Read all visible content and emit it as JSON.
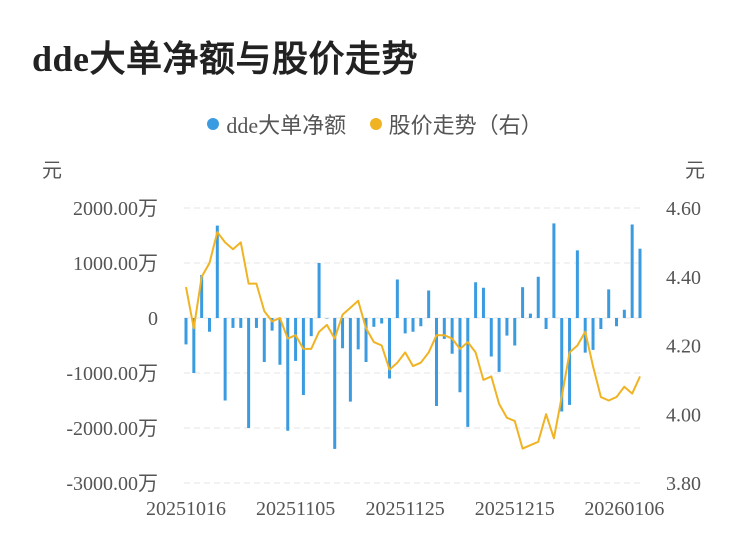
{
  "chart_data": {
    "type": "bar+line",
    "title": "dde大单净额与股价走势",
    "legend": [
      "dde大单净额",
      "股价走势（右）"
    ],
    "left_unit": "元",
    "right_unit": "元",
    "left_ticks": [
      "2000.00万",
      "1000.00万",
      "0",
      "-1000.00万",
      "-2000.00万",
      "-3000.00万"
    ],
    "right_ticks": [
      "4.60",
      "4.40",
      "4.20",
      "4.00",
      "3.80"
    ],
    "y_left_lim": [
      -3000,
      2000
    ],
    "y_right_lim": [
      3.8,
      4.6
    ],
    "x_labels": [
      "20251016",
      "20251105",
      "20251125",
      "20251215",
      "20260106"
    ],
    "x_label_indices": [
      0,
      14,
      28,
      42,
      56
    ],
    "colors": {
      "bar": "#3a9be0",
      "line": "#f0b323",
      "grid": "#e6e6e6"
    },
    "series": [
      {
        "name": "dde大单净额",
        "type": "bar",
        "axis": "left",
        "values": [
          -480,
          -1000,
          780,
          -250,
          1680,
          -1500,
          -180,
          -180,
          -2000,
          -180,
          -800,
          -230,
          -850,
          -2050,
          -780,
          -1400,
          -330,
          1000,
          0,
          -2380,
          -550,
          -1520,
          -570,
          -800,
          -160,
          -100,
          -1100,
          700,
          -280,
          -250,
          -150,
          500,
          -1600,
          -380,
          -650,
          -1350,
          -1980,
          650,
          550,
          -700,
          -980,
          -320,
          -500,
          560,
          80,
          750,
          -200,
          1720,
          -1700,
          -1580,
          1230,
          -630,
          -580,
          -200,
          520,
          -150,
          150,
          1700,
          1260
        ]
      },
      {
        "name": "股价走势（右）",
        "type": "line",
        "axis": "right",
        "values": [
          4.37,
          4.25,
          4.4,
          4.44,
          4.53,
          4.5,
          4.48,
          4.5,
          4.38,
          4.38,
          4.3,
          4.27,
          4.28,
          4.22,
          4.23,
          4.19,
          4.19,
          4.24,
          4.26,
          4.22,
          4.29,
          4.31,
          4.33,
          4.25,
          4.21,
          4.2,
          4.13,
          4.15,
          4.18,
          4.14,
          4.15,
          4.18,
          4.23,
          4.23,
          4.22,
          4.19,
          4.21,
          4.18,
          4.1,
          4.11,
          4.03,
          3.99,
          3.98,
          3.9,
          3.91,
          3.92,
          4.0,
          3.93,
          4.05,
          4.18,
          4.2,
          4.24,
          4.14,
          4.05,
          4.04,
          4.05,
          4.08,
          4.06,
          4.11
        ]
      }
    ]
  }
}
